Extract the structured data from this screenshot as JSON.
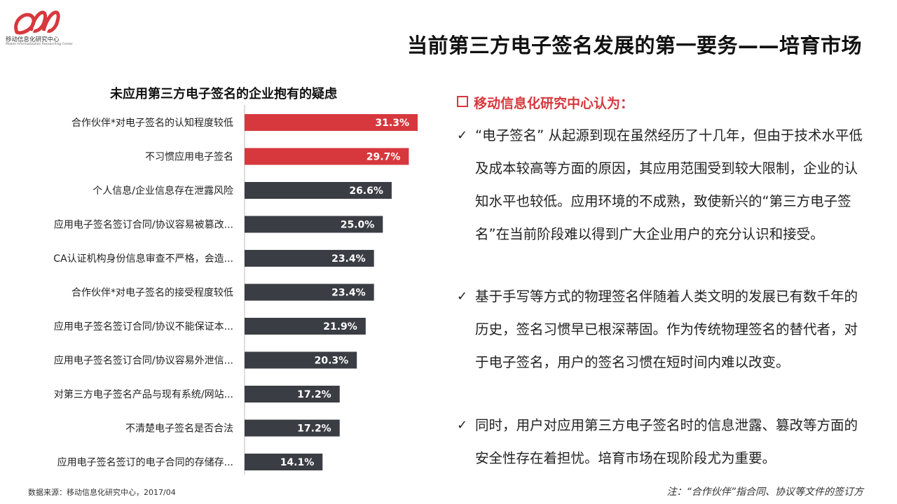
{
  "header": {
    "logo_name": "移动信息化研究中心",
    "logo_sub": "Mobile Informatization Researching Center",
    "title": "当前第三方电子签名发展的第一要务——培育市场"
  },
  "colors": {
    "highlight": "#d6383d",
    "normal": "#3a3d43",
    "accent_text": "#d6383d"
  },
  "chart_data": {
    "type": "bar",
    "orientation": "horizontal",
    "title": "未应用第三方电子签名的企业抱有的疑虑",
    "categories": [
      "合作伙伴*对电子签名的认知程度较低",
      "不习惯应用电子签名",
      "个人信息/企业信息存在泄露风险",
      "应用电子签名签订合同/协议容易被篡改...",
      "CA认证机构身份信息审查不严格，会造...",
      "合作伙伴*对电子签名的接受程度较低",
      "应用电子签名签订合同/协议不能保证本...",
      "应用电子签名签订合同/协议容易外泄信...",
      "对第三方电子签名产品与现有系统/网站...",
      "不清楚电子签名是否合法",
      "应用电子签名签订的电子合同的存储存..."
    ],
    "values": [
      31.3,
      29.7,
      26.6,
      25.0,
      23.4,
      23.4,
      21.9,
      20.3,
      17.2,
      17.2,
      14.1
    ],
    "value_labels": [
      "31.3%",
      "29.7%",
      "26.6%",
      "25.0%",
      "23.4%",
      "23.4%",
      "21.9%",
      "20.3%",
      "17.2%",
      "17.2%",
      "14.1%"
    ],
    "highlighted": [
      true,
      true,
      false,
      false,
      false,
      false,
      false,
      false,
      false,
      false,
      false
    ],
    "grid": false,
    "xlabel": "",
    "ylabel": ""
  },
  "analysis": {
    "heading": "移动信息化研究中心认为：",
    "points": [
      "“电子签名” 从起源到现在虽然经历了十几年，但由于技术水平低及成本较高等方面的原因，其应用范围受到较大限制，企业的认知水平也较低。应用环境的不成熟，致使新兴的“第三方电子签名”在当前阶段难以得到广大企业用户的充分认识和接受。",
      "基于手写等方式的物理签名伴随着人类文明的发展已有数千年的历史，签名习惯早已根深蒂固。作为传统物理签名的替代者，对于电子签名，用户的签名习惯在短时间内难以改变。",
      "同时，用户对应用第三方电子签名时的信息泄露、篡改等方面的安全性存在着担忧。培育市场在现阶段尤为重要。"
    ],
    "check_symbol": "✓"
  },
  "footer": {
    "source": "数据来源：移动信息化研究中心，2017/04",
    "note": "注：“合作伙伴”指合同、协议等文件的签订方"
  }
}
